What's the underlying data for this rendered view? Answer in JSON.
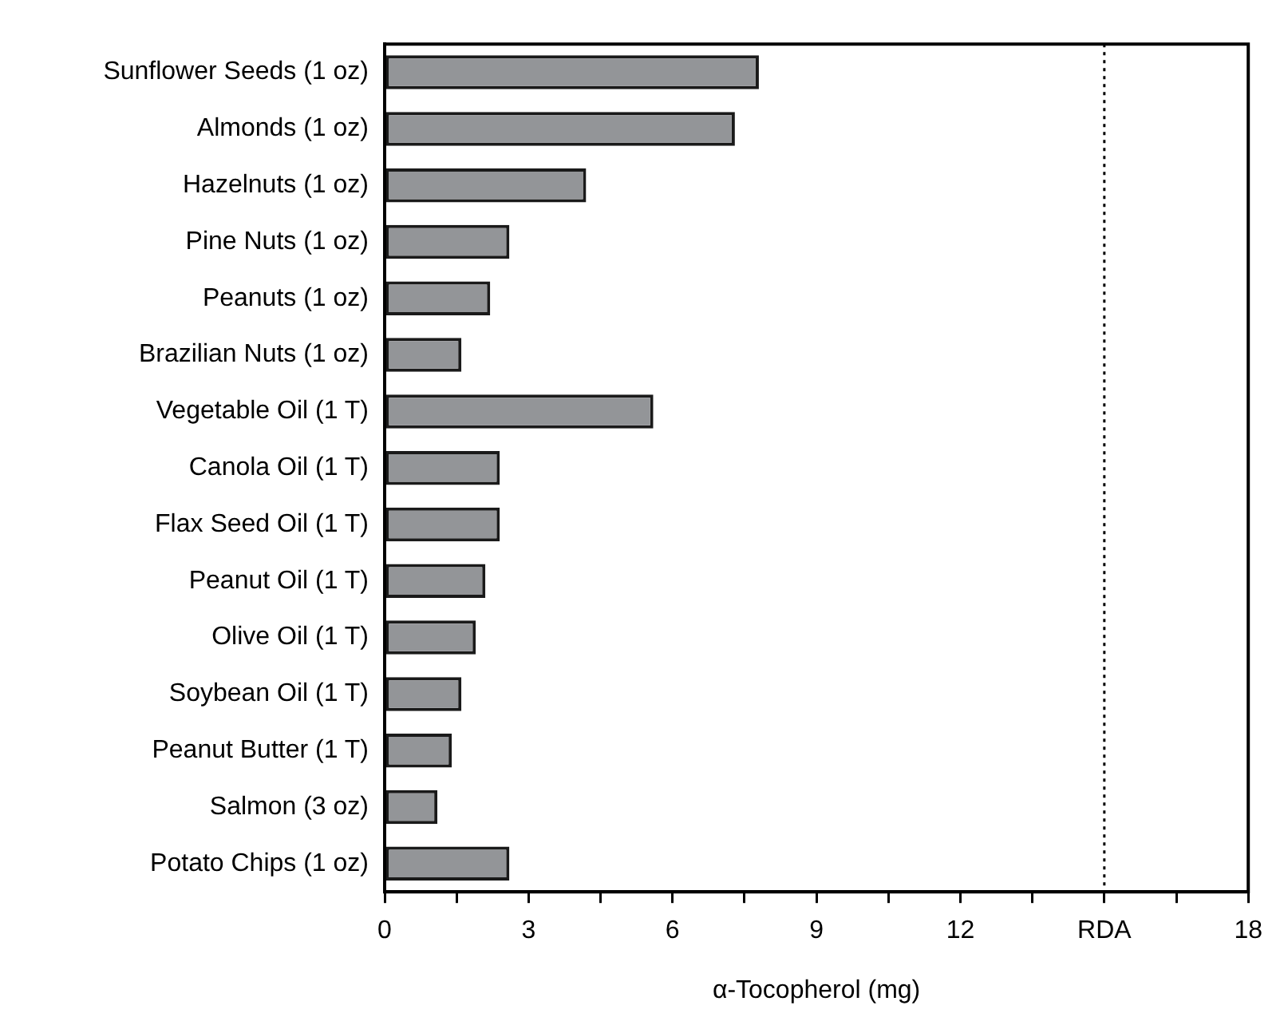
{
  "chart_data": {
    "type": "bar",
    "orientation": "horizontal",
    "xlabel": "α-Tocopherol (mg)",
    "categories": [
      "Sunflower Seeds (1 oz)",
      "Almonds (1 oz)",
      "Hazelnuts (1 oz)",
      "Pine Nuts (1 oz)",
      "Peanuts (1 oz)",
      "Brazilian Nuts (1 oz)",
      "Vegetable Oil (1 T)",
      "Canola Oil (1 T)",
      "Flax Seed Oil (1 T)",
      "Peanut Oil (1 T)",
      "Olive Oil (1 T)",
      "Soybean Oil (1 T)",
      "Peanut Butter (1 T)",
      "Salmon (3 oz)",
      "Potato Chips (1 oz)"
    ],
    "values": [
      7.8,
      7.3,
      4.2,
      2.6,
      2.2,
      1.6,
      5.6,
      2.4,
      2.4,
      2.1,
      1.9,
      1.6,
      1.4,
      1.1,
      2.6
    ],
    "color": "#939598",
    "xlim": [
      0,
      18
    ],
    "xticks": [
      0,
      {
        "value": 1.5,
        "label": null
      },
      3,
      {
        "value": 4.5,
        "label": null
      },
      6,
      {
        "value": 7.5,
        "label": null
      },
      9,
      {
        "value": 10.5,
        "label": null
      },
      12,
      {
        "value": 13.5,
        "label": null
      },
      {
        "value": 15,
        "label": "RDA"
      },
      {
        "value": 16.5,
        "label": null
      },
      18
    ],
    "ref_lines": [
      {
        "axis": "x",
        "value": 15,
        "line_style": "dotted",
        "color": "#000000"
      }
    ],
    "grid": false,
    "legend": false
  }
}
